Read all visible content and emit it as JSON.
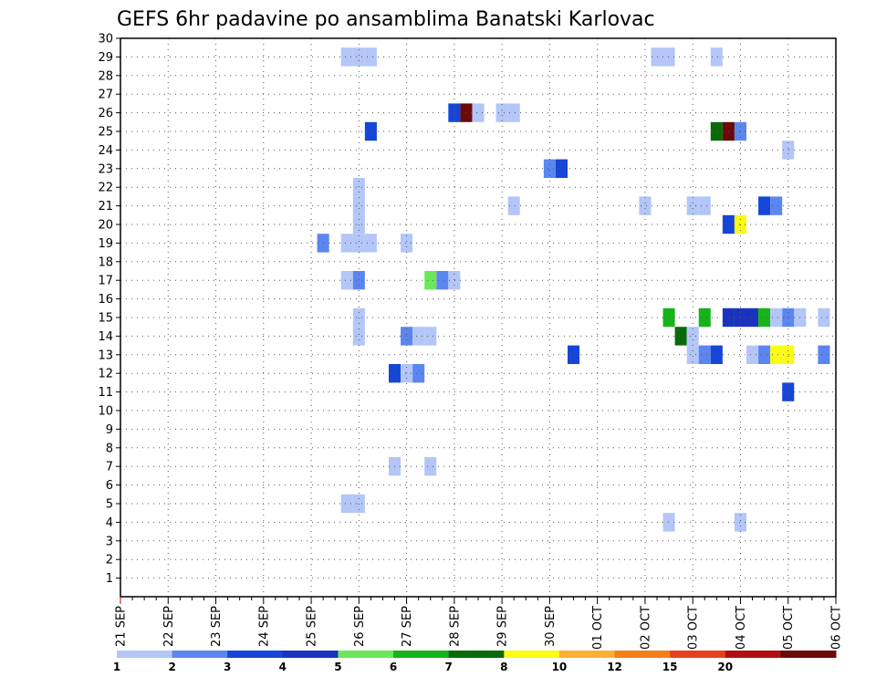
{
  "chart_data": {
    "type": "heatmap",
    "title": "GEFS 6hr padavine po ansamblima Banatski Karlovac",
    "xlabel": "",
    "ylabel": "",
    "x_tick_labels": [
      "21 SEP",
      "22 SEP",
      "23 SEP",
      "24 SEP",
      "25 SEP",
      "26 SEP",
      "27 SEP",
      "28 SEP",
      "29 SEP",
      "30 SEP",
      "01 OCT",
      "02 OCT",
      "03 OCT",
      "04 OCT",
      "05 OCT",
      "06 OCT"
    ],
    "y_tick_labels": [
      "1",
      "2",
      "3",
      "4",
      "5",
      "6",
      "7",
      "8",
      "9",
      "10",
      "11",
      "12",
      "13",
      "14",
      "15",
      "16",
      "17",
      "18",
      "19",
      "20",
      "21",
      "22",
      "23",
      "24",
      "25",
      "26",
      "27",
      "28",
      "29",
      "30"
    ],
    "x_unit": "6-hour steps from 21 SEP 00",
    "xlim": [
      0,
      60
    ],
    "ylim": [
      0,
      30
    ],
    "grid": true,
    "legend": {
      "placement": "bottom",
      "labels": [
        "1",
        "2",
        "3",
        "4",
        "5",
        "6",
        "7",
        "8",
        "10",
        "12",
        "15",
        "20"
      ],
      "colors": [
        "#b3c6f7",
        "#5b86f0",
        "#1646d8",
        "#1a33bf",
        "#6be85a",
        "#17b31a",
        "#0a6a0a",
        "#fbfb14",
        "#fbb034",
        "#f57f17",
        "#e8401c",
        "#b21010",
        "#6b0a0a"
      ]
    },
    "cells": [
      {
        "x": 19,
        "y": 29,
        "v": 1
      },
      {
        "x": 20,
        "y": 29,
        "v": 1
      },
      {
        "x": 21,
        "y": 29,
        "v": 1
      },
      {
        "x": 45,
        "y": 29,
        "v": 1
      },
      {
        "x": 46,
        "y": 29,
        "v": 1
      },
      {
        "x": 50,
        "y": 29,
        "v": 1
      },
      {
        "x": 28,
        "y": 26,
        "v": 3
      },
      {
        "x": 29,
        "y": 26,
        "v": 20
      },
      {
        "x": 30,
        "y": 26,
        "v": 1
      },
      {
        "x": 32,
        "y": 26,
        "v": 1
      },
      {
        "x": 33,
        "y": 26,
        "v": 1
      },
      {
        "x": 21,
        "y": 25,
        "v": 3
      },
      {
        "x": 50,
        "y": 25,
        "v": 7
      },
      {
        "x": 51,
        "y": 25,
        "v": 25
      },
      {
        "x": 52,
        "y": 25,
        "v": 2
      },
      {
        "x": 56,
        "y": 24,
        "v": 1
      },
      {
        "x": 36,
        "y": 23,
        "v": 2
      },
      {
        "x": 37,
        "y": 23,
        "v": 3
      },
      {
        "x": 20,
        "y": 22,
        "v": 1
      },
      {
        "x": 20,
        "y": 21,
        "v": 1
      },
      {
        "x": 33,
        "y": 21,
        "v": 1
      },
      {
        "x": 44,
        "y": 21,
        "v": 1
      },
      {
        "x": 48,
        "y": 21,
        "v": 1
      },
      {
        "x": 49,
        "y": 21,
        "v": 1
      },
      {
        "x": 54,
        "y": 21,
        "v": 3
      },
      {
        "x": 55,
        "y": 21,
        "v": 2
      },
      {
        "x": 20,
        "y": 20,
        "v": 1
      },
      {
        "x": 51,
        "y": 20,
        "v": 3
      },
      {
        "x": 52,
        "y": 20,
        "v": 8
      },
      {
        "x": 17,
        "y": 19,
        "v": 2
      },
      {
        "x": 19,
        "y": 19,
        "v": 1
      },
      {
        "x": 20,
        "y": 19,
        "v": 1
      },
      {
        "x": 21,
        "y": 19,
        "v": 1
      },
      {
        "x": 24,
        "y": 19,
        "v": 1
      },
      {
        "x": 19,
        "y": 17,
        "v": 1
      },
      {
        "x": 20,
        "y": 17,
        "v": 2
      },
      {
        "x": 26,
        "y": 17,
        "v": 5
      },
      {
        "x": 27,
        "y": 17,
        "v": 2
      },
      {
        "x": 28,
        "y": 17,
        "v": 1
      },
      {
        "x": 20,
        "y": 15,
        "v": 1
      },
      {
        "x": 46,
        "y": 15,
        "v": 6
      },
      {
        "x": 49,
        "y": 15,
        "v": 6
      },
      {
        "x": 51,
        "y": 15,
        "v": 4
      },
      {
        "x": 52,
        "y": 15,
        "v": 4
      },
      {
        "x": 53,
        "y": 15,
        "v": 4
      },
      {
        "x": 54,
        "y": 15,
        "v": 6
      },
      {
        "x": 55,
        "y": 15,
        "v": 1
      },
      {
        "x": 56,
        "y": 15,
        "v": 2
      },
      {
        "x": 57,
        "y": 15,
        "v": 1
      },
      {
        "x": 59,
        "y": 15,
        "v": 1
      },
      {
        "x": 20,
        "y": 14,
        "v": 1
      },
      {
        "x": 24,
        "y": 14,
        "v": 2
      },
      {
        "x": 25,
        "y": 14,
        "v": 1
      },
      {
        "x": 26,
        "y": 14,
        "v": 1
      },
      {
        "x": 47,
        "y": 14,
        "v": 7
      },
      {
        "x": 48,
        "y": 14,
        "v": 1
      },
      {
        "x": 38,
        "y": 13,
        "v": 3
      },
      {
        "x": 48,
        "y": 13,
        "v": 1
      },
      {
        "x": 49,
        "y": 13,
        "v": 2
      },
      {
        "x": 50,
        "y": 13,
        "v": 3
      },
      {
        "x": 53,
        "y": 13,
        "v": 1
      },
      {
        "x": 54,
        "y": 13,
        "v": 2
      },
      {
        "x": 55,
        "y": 13,
        "v": 8
      },
      {
        "x": 56,
        "y": 13,
        "v": 8
      },
      {
        "x": 59,
        "y": 13,
        "v": 2
      },
      {
        "x": 23,
        "y": 12,
        "v": 3
      },
      {
        "x": 24,
        "y": 12,
        "v": 1
      },
      {
        "x": 25,
        "y": 12,
        "v": 2
      },
      {
        "x": 56,
        "y": 11,
        "v": 3
      },
      {
        "x": 23,
        "y": 7,
        "v": 1
      },
      {
        "x": 26,
        "y": 7,
        "v": 1
      },
      {
        "x": 19,
        "y": 5,
        "v": 1
      },
      {
        "x": 20,
        "y": 5,
        "v": 1
      },
      {
        "x": 46,
        "y": 4,
        "v": 1
      },
      {
        "x": 52,
        "y": 4,
        "v": 1
      }
    ]
  }
}
